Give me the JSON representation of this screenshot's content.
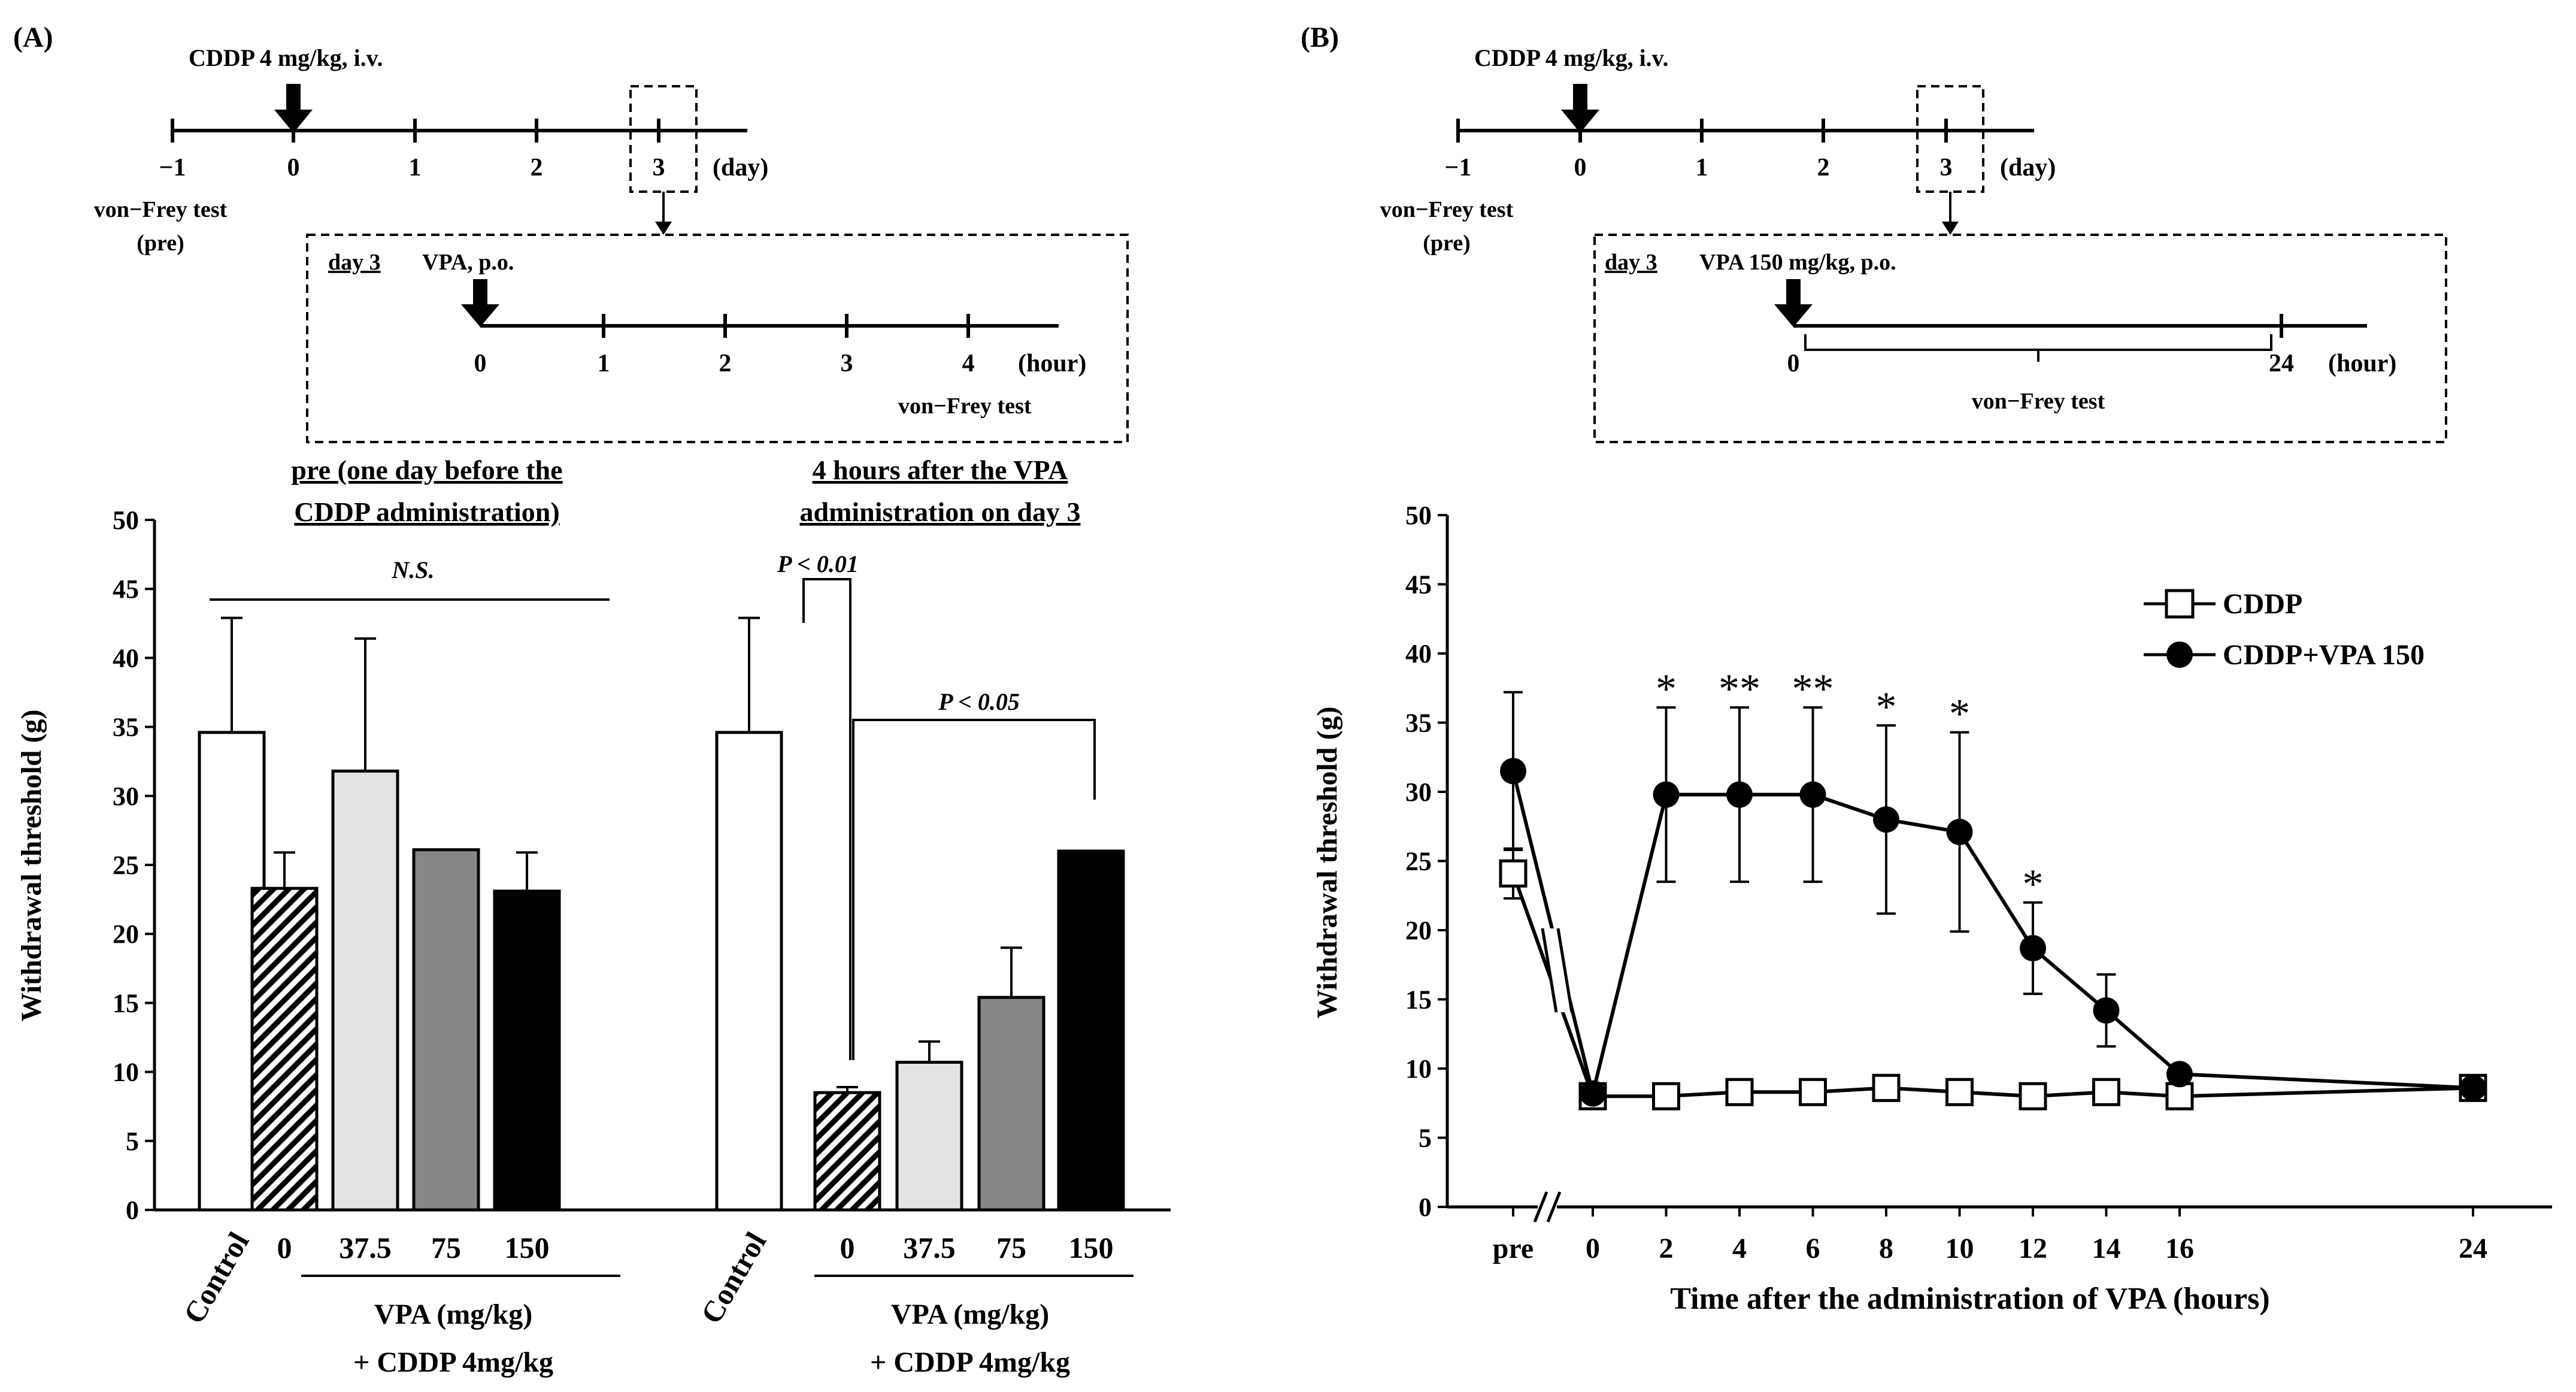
{
  "panel_a": {
    "label": "(A)",
    "timeline": {
      "cddp_label": "CDDP 4 mg/kg, i.v.",
      "ticks": [
        "−1",
        "0",
        "1",
        "2",
        "3"
      ],
      "unit": "(day)",
      "pre_label_1": "von−Frey test",
      "pre_label_2": "(pre)",
      "inset_day": "day 3",
      "inset_vpa": "VPA, p.o.",
      "inset_ticks": [
        "0",
        "1",
        "2",
        "3",
        "4"
      ],
      "inset_unit": "(hour)",
      "inset_test": "von−Frey test"
    }
  },
  "panel_b": {
    "label": "(B)",
    "timeline": {
      "cddp_label": "CDDP 4 mg/kg, i.v.",
      "ticks": [
        "−1",
        "0",
        "1",
        "2",
        "3"
      ],
      "unit": "(day)",
      "pre_label_1": "von−Frey test",
      "pre_label_2": "(pre)",
      "inset_day": "day 3",
      "inset_vpa": "VPA 150 mg/kg, p.o.",
      "inset_start": "0",
      "inset_end": "24",
      "inset_unit": "(hour)",
      "inset_test": "von−Frey test"
    }
  },
  "chart_data": [
    {
      "type": "bar",
      "ylabel": "Withdrawal threshold (g)",
      "ylim": [
        0,
        50
      ],
      "yticks": [
        0,
        5,
        10,
        15,
        20,
        25,
        30,
        35,
        40,
        45,
        50
      ],
      "groups": [
        {
          "title_1": "pre (one day before  the",
          "title_2": "CDDP administration)",
          "categories": [
            "Control",
            "0",
            "37.5",
            "75",
            "150"
          ],
          "values": [
            34.6,
            23.3,
            31.8,
            26.1,
            23.1
          ],
          "errors": [
            8.3,
            2.6,
            9.6,
            0.1,
            2.8
          ],
          "annotation": "N.S.",
          "xgroup_label_1": "VPA (mg/kg)",
          "xgroup_label_2": "+ CDDP 4mg/kg"
        },
        {
          "title_1": "4 hours after the VPA",
          "title_2": "administration on day 3",
          "categories": [
            "Control",
            "0",
            "37.5",
            "75",
            "150"
          ],
          "values": [
            34.6,
            8.5,
            10.7,
            15.4,
            26.0
          ],
          "errors": [
            8.3,
            0.4,
            1.5,
            3.6,
            0.1
          ],
          "sig_1": "P < 0.01",
          "sig_2": "P < 0.05",
          "xgroup_label_1": "VPA (mg/kg)",
          "xgroup_label_2": "+ CDDP 4mg/kg"
        }
      ],
      "bar_styles": [
        "white",
        "hatched",
        "light gray",
        "gray",
        "black"
      ]
    },
    {
      "type": "line",
      "xlabel": "Time after the administration of VPA (hours)",
      "ylabel": "Withdrawal threshold (g)",
      "ylim": [
        0,
        50
      ],
      "yticks": [
        0,
        5,
        10,
        15,
        20,
        25,
        30,
        35,
        40,
        45,
        50
      ],
      "x_tick_labels": [
        "pre",
        "0",
        "2",
        "4",
        "6",
        "8",
        "10",
        "12",
        "14",
        "16",
        "24"
      ],
      "x": [
        "pre",
        0,
        2,
        4,
        6,
        8,
        10,
        12,
        14,
        16,
        24
      ],
      "series": [
        {
          "name": "CDDP",
          "marker": "open square",
          "values": [
            24.1,
            8.0,
            8.0,
            8.3,
            8.3,
            8.6,
            8.3,
            8.0,
            8.3,
            8.0,
            8.6
          ],
          "errors": [
            1.8,
            0,
            0,
            0,
            0,
            0,
            0,
            0,
            0,
            0,
            0
          ]
        },
        {
          "name": "CDDP+VPA 150",
          "marker": "filled circle",
          "values": [
            31.5,
            8.2,
            29.8,
            29.8,
            29.8,
            28.0,
            27.1,
            18.7,
            14.2,
            9.6,
            8.6
          ],
          "errors": [
            5.7,
            0,
            6.3,
            6.3,
            6.3,
            6.8,
            7.2,
            3.3,
            2.6,
            0,
            0
          ]
        }
      ],
      "significance": [
        "",
        "",
        "*",
        "**",
        "**",
        "*",
        "*",
        "*",
        "",
        "",
        ""
      ],
      "legend": "top-right"
    }
  ]
}
